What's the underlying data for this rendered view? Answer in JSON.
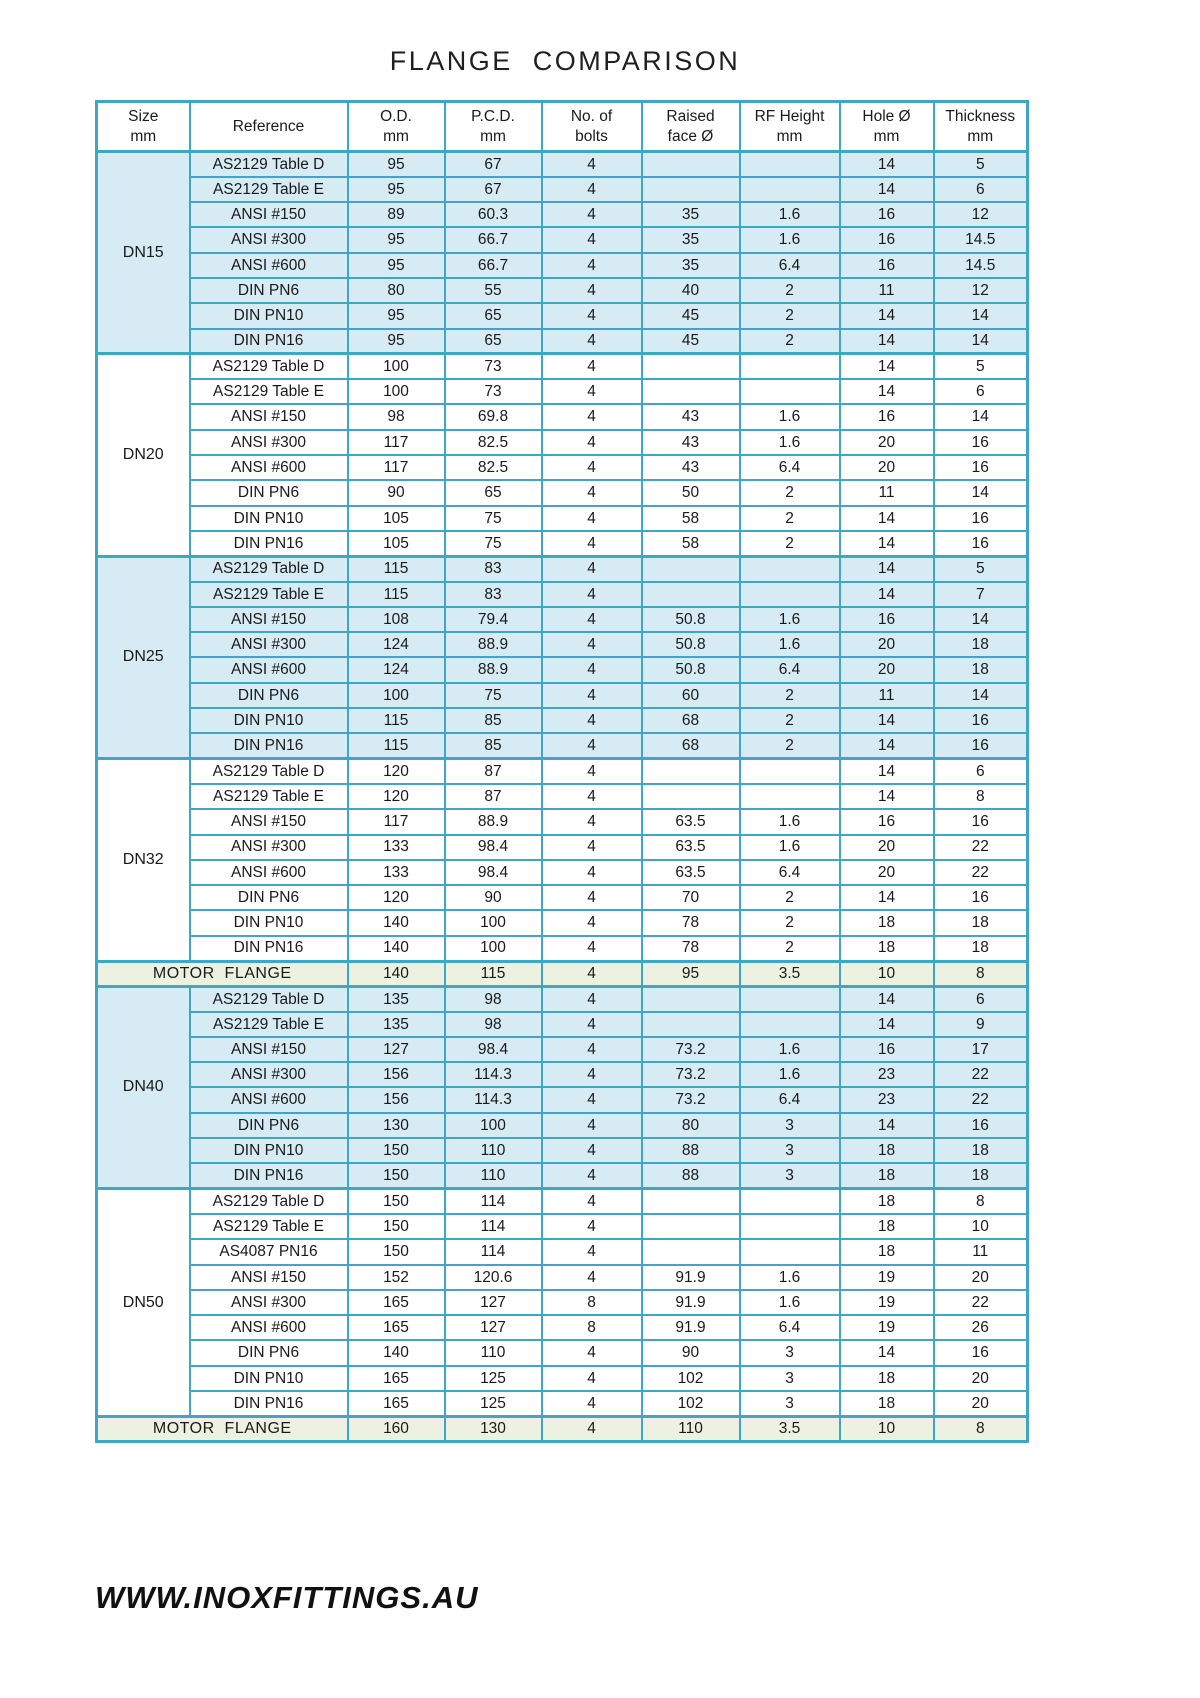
{
  "title": "FLANGE  COMPARISON",
  "footer": "WWW.INOXFITTINGS.AU",
  "colors": {
    "border_teal": "#3fa6c6",
    "shaded_row_blue": "#d7ebf4",
    "motor_row_green": "#edf1df",
    "text": "#1a1a1a",
    "page_background": "#ffffff"
  },
  "table": {
    "columns": [
      {
        "line1": "Size",
        "line2": "mm"
      },
      {
        "line1": "Reference",
        "line2": ""
      },
      {
        "line1": "O.D.",
        "line2": "mm"
      },
      {
        "line1": "P.C.D.",
        "line2": "mm"
      },
      {
        "line1": "No. of",
        "line2": "bolts"
      },
      {
        "line1": "Raised",
        "line2": "face Ø"
      },
      {
        "line1": "RF Height",
        "line2": "mm"
      },
      {
        "line1": "Hole Ø",
        "line2": "mm"
      },
      {
        "line1": "Thickness",
        "line2": "mm"
      }
    ],
    "sections": [
      {
        "type": "group",
        "size": "DN15",
        "shaded": true,
        "rows": [
          {
            "ref": "AS2129 Table D",
            "values": [
              "95",
              "67",
              "4",
              "",
              "",
              "14",
              "5"
            ]
          },
          {
            "ref": "AS2129 Table E",
            "values": [
              "95",
              "67",
              "4",
              "",
              "",
              "14",
              "6"
            ]
          },
          {
            "ref": "ANSI #150",
            "values": [
              "89",
              "60.3",
              "4",
              "35",
              "1.6",
              "16",
              "12"
            ]
          },
          {
            "ref": "ANSI #300",
            "values": [
              "95",
              "66.7",
              "4",
              "35",
              "1.6",
              "16",
              "14.5"
            ]
          },
          {
            "ref": "ANSI #600",
            "values": [
              "95",
              "66.7",
              "4",
              "35",
              "6.4",
              "16",
              "14.5"
            ]
          },
          {
            "ref": "DIN PN6",
            "values": [
              "80",
              "55",
              "4",
              "40",
              "2",
              "11",
              "12"
            ]
          },
          {
            "ref": "DIN PN10",
            "values": [
              "95",
              "65",
              "4",
              "45",
              "2",
              "14",
              "14"
            ]
          },
          {
            "ref": "DIN PN16",
            "values": [
              "95",
              "65",
              "4",
              "45",
              "2",
              "14",
              "14"
            ]
          }
        ]
      },
      {
        "type": "group",
        "size": "DN20",
        "shaded": false,
        "rows": [
          {
            "ref": "AS2129 Table D",
            "values": [
              "100",
              "73",
              "4",
              "",
              "",
              "14",
              "5"
            ]
          },
          {
            "ref": "AS2129 Table E",
            "values": [
              "100",
              "73",
              "4",
              "",
              "",
              "14",
              "6"
            ]
          },
          {
            "ref": "ANSI #150",
            "values": [
              "98",
              "69.8",
              "4",
              "43",
              "1.6",
              "16",
              "14"
            ]
          },
          {
            "ref": "ANSI #300",
            "values": [
              "117",
              "82.5",
              "4",
              "43",
              "1.6",
              "20",
              "16"
            ]
          },
          {
            "ref": "ANSI #600",
            "values": [
              "117",
              "82.5",
              "4",
              "43",
              "6.4",
              "20",
              "16"
            ]
          },
          {
            "ref": "DIN PN6",
            "values": [
              "90",
              "65",
              "4",
              "50",
              "2",
              "11",
              "14"
            ]
          },
          {
            "ref": "DIN PN10",
            "values": [
              "105",
              "75",
              "4",
              "58",
              "2",
              "14",
              "16"
            ]
          },
          {
            "ref": "DIN PN16",
            "values": [
              "105",
              "75",
              "4",
              "58",
              "2",
              "14",
              "16"
            ]
          }
        ]
      },
      {
        "type": "group",
        "size": "DN25",
        "shaded": true,
        "rows": [
          {
            "ref": "AS2129 Table D",
            "values": [
              "115",
              "83",
              "4",
              "",
              "",
              "14",
              "5"
            ]
          },
          {
            "ref": "AS2129 Table E",
            "values": [
              "115",
              "83",
              "4",
              "",
              "",
              "14",
              "7"
            ]
          },
          {
            "ref": "ANSI #150",
            "values": [
              "108",
              "79.4",
              "4",
              "50.8",
              "1.6",
              "16",
              "14"
            ]
          },
          {
            "ref": "ANSI #300",
            "values": [
              "124",
              "88.9",
              "4",
              "50.8",
              "1.6",
              "20",
              "18"
            ]
          },
          {
            "ref": "ANSI #600",
            "values": [
              "124",
              "88.9",
              "4",
              "50.8",
              "6.4",
              "20",
              "18"
            ]
          },
          {
            "ref": "DIN PN6",
            "values": [
              "100",
              "75",
              "4",
              "60",
              "2",
              "11",
              "14"
            ]
          },
          {
            "ref": "DIN PN10",
            "values": [
              "115",
              "85",
              "4",
              "68",
              "2",
              "14",
              "16"
            ]
          },
          {
            "ref": "DIN PN16",
            "values": [
              "115",
              "85",
              "4",
              "68",
              "2",
              "14",
              "16"
            ]
          }
        ]
      },
      {
        "type": "group",
        "size": "DN32",
        "shaded": false,
        "rows": [
          {
            "ref": "AS2129 Table D",
            "values": [
              "120",
              "87",
              "4",
              "",
              "",
              "14",
              "6"
            ]
          },
          {
            "ref": "AS2129 Table E",
            "values": [
              "120",
              "87",
              "4",
              "",
              "",
              "14",
              "8"
            ]
          },
          {
            "ref": "ANSI #150",
            "values": [
              "117",
              "88.9",
              "4",
              "63.5",
              "1.6",
              "16",
              "16"
            ]
          },
          {
            "ref": "ANSI #300",
            "values": [
              "133",
              "98.4",
              "4",
              "63.5",
              "1.6",
              "20",
              "22"
            ]
          },
          {
            "ref": "ANSI #600",
            "values": [
              "133",
              "98.4",
              "4",
              "63.5",
              "6.4",
              "20",
              "22"
            ]
          },
          {
            "ref": "DIN PN6",
            "values": [
              "120",
              "90",
              "4",
              "70",
              "2",
              "14",
              "16"
            ]
          },
          {
            "ref": "DIN PN10",
            "values": [
              "140",
              "100",
              "4",
              "78",
              "2",
              "18",
              "18"
            ]
          },
          {
            "ref": "DIN PN16",
            "values": [
              "140",
              "100",
              "4",
              "78",
              "2",
              "18",
              "18"
            ]
          }
        ]
      },
      {
        "type": "motor",
        "label": "MOTOR  FLANGE",
        "values": [
          "140",
          "115",
          "4",
          "95",
          "3.5",
          "10",
          "8"
        ]
      },
      {
        "type": "group",
        "size": "DN40",
        "shaded": true,
        "rows": [
          {
            "ref": "AS2129 Table D",
            "values": [
              "135",
              "98",
              "4",
              "",
              "",
              "14",
              "6"
            ]
          },
          {
            "ref": "AS2129 Table E",
            "values": [
              "135",
              "98",
              "4",
              "",
              "",
              "14",
              "9"
            ]
          },
          {
            "ref": "ANSI #150",
            "values": [
              "127",
              "98.4",
              "4",
              "73.2",
              "1.6",
              "16",
              "17"
            ]
          },
          {
            "ref": "ANSI #300",
            "values": [
              "156",
              "114.3",
              "4",
              "73.2",
              "1.6",
              "23",
              "22"
            ]
          },
          {
            "ref": "ANSI #600",
            "values": [
              "156",
              "114.3",
              "4",
              "73.2",
              "6.4",
              "23",
              "22"
            ]
          },
          {
            "ref": "DIN PN6",
            "values": [
              "130",
              "100",
              "4",
              "80",
              "3",
              "14",
              "16"
            ]
          },
          {
            "ref": "DIN PN10",
            "values": [
              "150",
              "110",
              "4",
              "88",
              "3",
              "18",
              "18"
            ]
          },
          {
            "ref": "DIN PN16",
            "values": [
              "150",
              "110",
              "4",
              "88",
              "3",
              "18",
              "18"
            ]
          }
        ]
      },
      {
        "type": "group",
        "size": "DN50",
        "shaded": false,
        "rows": [
          {
            "ref": "AS2129 Table D",
            "values": [
              "150",
              "114",
              "4",
              "",
              "",
              "18",
              "8"
            ]
          },
          {
            "ref": "AS2129 Table E",
            "values": [
              "150",
              "114",
              "4",
              "",
              "",
              "18",
              "10"
            ]
          },
          {
            "ref": "AS4087 PN16",
            "values": [
              "150",
              "114",
              "4",
              "",
              "",
              "18",
              "11"
            ]
          },
          {
            "ref": "ANSI #150",
            "values": [
              "152",
              "120.6",
              "4",
              "91.9",
              "1.6",
              "19",
              "20"
            ]
          },
          {
            "ref": "ANSI #300",
            "values": [
              "165",
              "127",
              "8",
              "91.9",
              "1.6",
              "19",
              "22"
            ]
          },
          {
            "ref": "ANSI #600",
            "values": [
              "165",
              "127",
              "8",
              "91.9",
              "6.4",
              "19",
              "26"
            ]
          },
          {
            "ref": "DIN PN6",
            "values": [
              "140",
              "110",
              "4",
              "90",
              "3",
              "14",
              "16"
            ]
          },
          {
            "ref": "DIN PN10",
            "values": [
              "165",
              "125",
              "4",
              "102",
              "3",
              "18",
              "20"
            ]
          },
          {
            "ref": "DIN PN16",
            "values": [
              "165",
              "125",
              "4",
              "102",
              "3",
              "18",
              "20"
            ]
          }
        ]
      },
      {
        "type": "motor",
        "label": "MOTOR  FLANGE",
        "values": [
          "160",
          "130",
          "4",
          "110",
          "3.5",
          "10",
          "8"
        ]
      }
    ]
  }
}
